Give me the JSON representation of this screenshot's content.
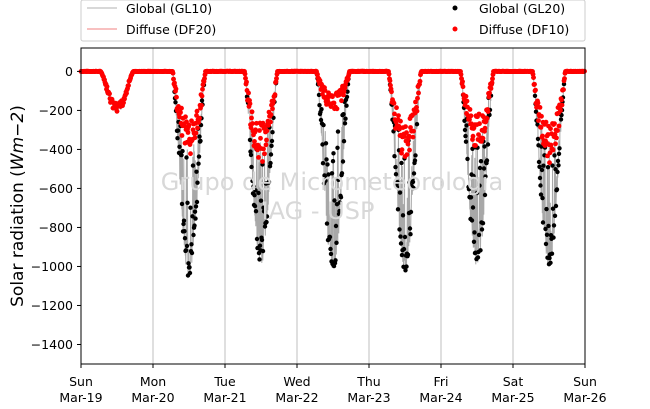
{
  "chart_data": {
    "type": "scatter",
    "ylabel_text": "Solar radiation (",
    "ylabel_unit": "Wm−2",
    "ylabel_close": ")",
    "ylim": [
      -1500,
      120
    ],
    "yticks": [
      0,
      -200,
      -400,
      -600,
      -800,
      -1000,
      -1200,
      -1400
    ],
    "xlim": [
      "2017-03-19",
      "2017-03-26"
    ],
    "x_ticks": [
      {
        "day": "Sun",
        "date": "Mar-19"
      },
      {
        "day": "Mon",
        "date": "Mar-20"
      },
      {
        "day": "Tue",
        "date": "Mar-21"
      },
      {
        "day": "Wed",
        "date": "Mar-22"
      },
      {
        "day": "Thu",
        "date": "Mar-23"
      },
      {
        "day": "Fri",
        "date": "Mar-24"
      },
      {
        "day": "Sat",
        "date": "Mar-25"
      },
      {
        "day": "Sun",
        "date": "Mar-26"
      }
    ],
    "grid": "vertical",
    "legend_placement": "above plot",
    "legend": [
      {
        "name": "Global (GL10)",
        "style": "line",
        "color": "#b0b0b0"
      },
      {
        "name": "Global (GL20)",
        "style": "dot",
        "color": "#000000"
      },
      {
        "name": "Diffuse (DF20)",
        "style": "line",
        "color": "#f08080"
      },
      {
        "name": "Diffuse (DF10)",
        "style": "dot",
        "color": "#ff0000"
      }
    ],
    "watermark": [
      "Grupo de Micrometeorologia",
      "IAG - USP"
    ],
    "daily_series": {
      "dates": [
        "Mar-19",
        "Mar-20",
        "Mar-21",
        "Mar-22",
        "Mar-23",
        "Mar-24",
        "Mar-25"
      ],
      "global_peak_min": [
        -220,
        -1060,
        -990,
        -1035,
        -1030,
        -1020,
        -1000
      ],
      "diffuse_peak_min": [
        -210,
        -430,
        -480,
        -210,
        -460,
        -400,
        -470
      ]
    }
  }
}
